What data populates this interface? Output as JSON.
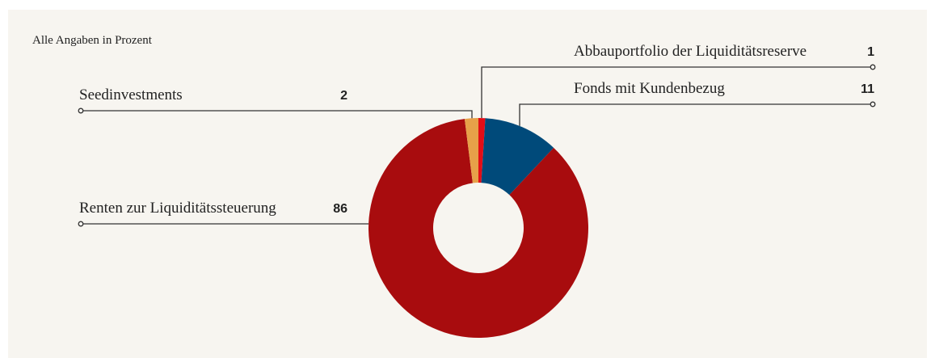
{
  "chart_data": {
    "type": "donut",
    "subtitle": "Alle Angaben in Prozent",
    "categories": [
      "Abbauportfolio der Liquiditätsreserve",
      "Fonds mit Kundenbezug",
      "Renten zur Liquiditätssteuerung",
      "Seedinvestments"
    ],
    "values": [
      1,
      11,
      86,
      2
    ],
    "colors": [
      "#e30d17",
      "#004a7a",
      "#a80c0e",
      "#e7a049"
    ]
  }
}
